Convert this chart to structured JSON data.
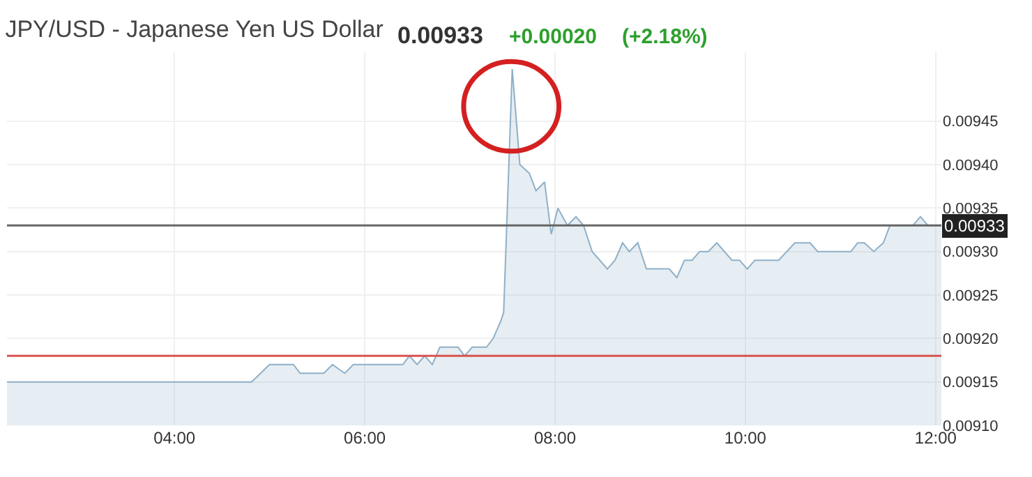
{
  "chart_data": {
    "type": "area",
    "title": "JPY/USD - Japanese Yen US Dollar",
    "annotations": [
      "0.00933",
      "+0.00020",
      "(+2.18%)"
    ],
    "x": [
      2.24,
      4.81,
      5.0,
      5.25,
      5.32,
      5.57,
      5.66,
      5.79,
      5.88,
      6.4,
      6.47,
      6.55,
      6.63,
      6.71,
      6.79,
      6.98,
      7.05,
      7.13,
      7.28,
      7.35,
      7.43,
      7.46,
      7.55,
      7.63,
      7.73,
      7.8,
      7.89,
      7.96,
      8.03,
      8.13,
      8.22,
      8.3,
      8.39,
      8.55,
      8.63,
      8.71,
      8.78,
      8.87,
      8.96,
      9.2,
      9.28,
      9.36,
      9.44,
      9.52,
      9.61,
      9.7,
      9.86,
      9.94,
      10.02,
      10.1,
      10.35,
      10.52,
      10.68,
      10.76,
      11.11,
      11.18,
      11.25,
      11.35,
      11.45,
      11.52,
      11.76,
      11.84,
      11.92,
      12.06
    ],
    "series": [
      {
        "color": "#8fb0c8",
        "values": [
          0.00915,
          0.00915,
          0.00917,
          0.00917,
          0.00916,
          0.00916,
          0.00917,
          0.00916,
          0.00917,
          0.00917,
          0.00918,
          0.00917,
          0.00918,
          0.00917,
          0.00919,
          0.00919,
          0.00918,
          0.00919,
          0.00919,
          0.0092,
          0.00922,
          0.00923,
          0.00951,
          0.0094,
          0.00939,
          0.00937,
          0.00938,
          0.00932,
          0.00935,
          0.00933,
          0.00934,
          0.00933,
          0.0093,
          0.00928,
          0.00929,
          0.00931,
          0.0093,
          0.00931,
          0.00928,
          0.00928,
          0.00927,
          0.00929,
          0.00929,
          0.0093,
          0.0093,
          0.00931,
          0.00929,
          0.00929,
          0.00928,
          0.00929,
          0.00929,
          0.00931,
          0.00931,
          0.0093,
          0.0093,
          0.00931,
          0.00931,
          0.0093,
          0.00931,
          0.00933,
          0.00933,
          0.00934,
          0.00933,
          0.00933
        ]
      }
    ],
    "xlim": [
      2.24,
      12.06
    ],
    "xticks": [
      {
        "value": 4,
        "label": "04:00"
      },
      {
        "value": 6,
        "label": "06:00"
      },
      {
        "value": 8,
        "label": "08:00"
      },
      {
        "value": 10,
        "label": "10:00"
      },
      {
        "value": 12,
        "label": "12:00"
      }
    ],
    "ylim": [
      0.0091,
      0.00953
    ],
    "yticks": [
      {
        "value": 0.0091,
        "label": "0.00910"
      },
      {
        "value": 0.00915,
        "label": "0.00915"
      },
      {
        "value": 0.0092,
        "label": "0.00920"
      },
      {
        "value": 0.00925,
        "label": "0.00925"
      },
      {
        "value": 0.0093,
        "label": "0.00930"
      },
      {
        "value": 0.00935,
        "label": "0.00935"
      },
      {
        "value": 0.0094,
        "label": "0.00940"
      },
      {
        "value": 0.00945,
        "label": "0.00945"
      }
    ],
    "ref_lines": [
      {
        "axis": "y",
        "value": 0.00933,
        "label": "0.00933",
        "color": "#666666"
      },
      {
        "axis": "y",
        "value": 0.00918,
        "color": "#d9534f"
      }
    ],
    "grid": true,
    "marker": "none",
    "line_style": "solid"
  }
}
